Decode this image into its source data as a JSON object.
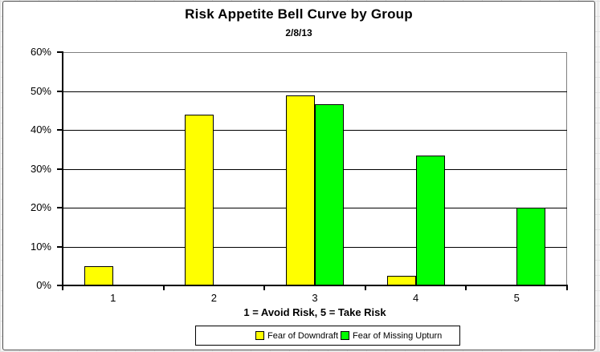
{
  "chart_data": {
    "type": "bar",
    "title": "Risk Appetite Bell Curve by Group",
    "subtitle": "2/8/13",
    "categories": [
      "1",
      "2",
      "3",
      "4",
      "5"
    ],
    "series": [
      {
        "name": "Fear of Downdraft",
        "color": "#FFFF00",
        "values": [
          4.9,
          43.9,
          48.8,
          2.4,
          0
        ]
      },
      {
        "name": "Fear of Missing Upturn",
        "color": "#00FF00",
        "values": [
          0,
          0,
          46.7,
          33.3,
          20
        ]
      }
    ],
    "xlabel": "1 = Avoid Risk, 5 = Take Risk",
    "ylabel": "",
    "ylim": [
      0,
      60
    ],
    "ytick_step": 10,
    "ytick_labels": [
      "0%",
      "10%",
      "20%",
      "30%",
      "40%",
      "50%",
      "60%"
    ],
    "grid": true,
    "legend_position": "bottom",
    "bar_border_color": "#000000",
    "gridline_color": "#000000",
    "plot_border_color": "#808080",
    "background_color": "#FFFFFF"
  }
}
